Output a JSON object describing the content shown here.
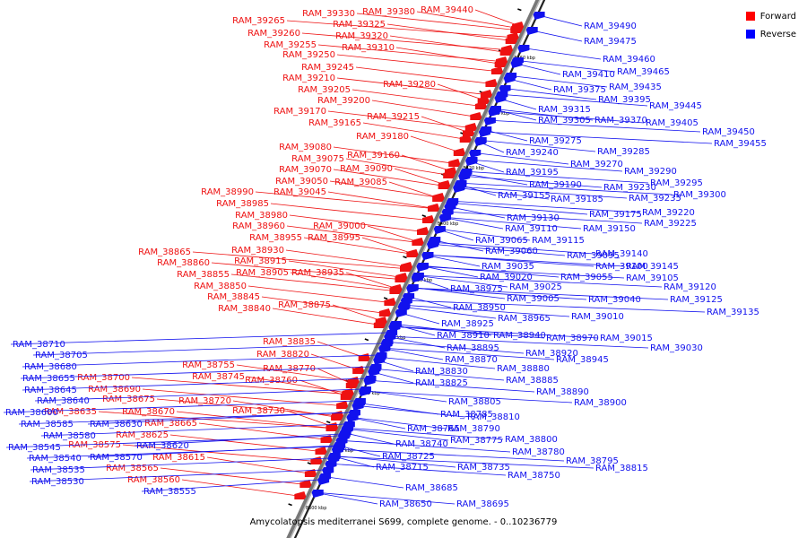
{
  "caption": "Amycolatopsis mediterranei S699, complete genome. - 0..10236779",
  "legend": [
    {
      "label": "Forward",
      "color": "#ff0000"
    },
    {
      "label": "Reverse",
      "color": "#0000ff"
    }
  ],
  "colors": {
    "forward": "#ee1111",
    "reverse": "#1111ee",
    "axis": "#777777"
  },
  "scale_ticks": [
    "8460 kbp",
    "8440 kbp",
    "8420 kbp",
    "8400 kbp",
    "8380 kbp",
    "8360 kbp",
    "8340 kbp",
    "8320 kbp",
    "8300 kbp"
  ],
  "forward_genes": [
    "RAM_39440",
    "RAM_39380",
    "RAM_39330",
    "RAM_39325",
    "RAM_39320",
    "RAM_39310",
    "RAM_39265",
    "RAM_39260",
    "RAM_39255",
    "RAM_39250",
    "RAM_39245",
    "RAM_39210",
    "RAM_39280",
    "RAM_39205",
    "RAM_39200",
    "RAM_39170",
    "RAM_39215",
    "RAM_39165",
    "RAM_39180",
    "RAM_39160",
    "RAM_39080",
    "RAM_39075",
    "RAM_39090",
    "RAM_39070",
    "RAM_39085",
    "RAM_39050",
    "RAM_39045",
    "RAM_38990",
    "RAM_38985",
    "RAM_38980",
    "RAM_38960",
    "RAM_39000",
    "RAM_38955",
    "RAM_38995",
    "RAM_38865",
    "RAM_38930",
    "RAM_38860",
    "RAM_38915",
    "RAM_38855",
    "RAM_38905",
    "RAM_38935",
    "RAM_38850",
    "RAM_38845",
    "RAM_38875",
    "RAM_38840",
    "RAM_38835",
    "RAM_38820",
    "RAM_38755",
    "RAM_38770",
    "RAM_38745",
    "RAM_38760",
    "RAM_38700",
    "RAM_38690",
    "RAM_38675",
    "RAM_38720",
    "RAM_38635",
    "RAM_38670",
    "RAM_38730",
    "RAM_38665",
    "RAM_38625",
    "RAM_38575",
    "RAM_38615",
    "RAM_38565",
    "RAM_38560"
  ],
  "reverse_genes": [
    "RAM_39490",
    "RAM_39475",
    "RAM_39460",
    "RAM_39410",
    "RAM_39465",
    "RAM_39375",
    "RAM_39435",
    "RAM_39395",
    "RAM_39445",
    "RAM_39315",
    "RAM_39405",
    "RAM_39305",
    "RAM_39370",
    "RAM_39450",
    "RAM_39455",
    "RAM_39275",
    "RAM_39240",
    "RAM_39285",
    "RAM_39270",
    "RAM_39290",
    "RAM_39195",
    "RAM_39295",
    "RAM_39190",
    "RAM_39230",
    "RAM_39300",
    "RAM_39155",
    "RAM_39185",
    "RAM_39235",
    "RAM_39175",
    "RAM_39220",
    "RAM_39130",
    "RAM_39225",
    "RAM_39110",
    "RAM_39150",
    "RAM_39065",
    "RAM_39115",
    "RAM_39140",
    "RAM_39060",
    "RAM_39095",
    "RAM_39035",
    "RAM_39100",
    "RAM_39145",
    "RAM_39020",
    "RAM_39055",
    "RAM_39105",
    "RAM_38975",
    "RAM_39025",
    "RAM_39120",
    "RAM_39005",
    "RAM_39040",
    "RAM_39125",
    "RAM_38950",
    "RAM_39135",
    "RAM_38965",
    "RAM_39010",
    "RAM_38925",
    "RAM_38910",
    "RAM_38940",
    "RAM_38970",
    "RAM_39015",
    "RAM_38895",
    "RAM_38920",
    "RAM_39030",
    "RAM_38870",
    "RAM_38945",
    "RAM_38830",
    "RAM_38880",
    "RAM_38825",
    "RAM_38885",
    "RAM_38890",
    "RAM_38805",
    "RAM_38900",
    "RAM_38785",
    "RAM_38810",
    "RAM_38765",
    "RAM_38790",
    "RAM_38775",
    "RAM_38800",
    "RAM_38740",
    "RAM_38780",
    "RAM_38725",
    "RAM_38795",
    "RAM_38715",
    "RAM_38735",
    "RAM_38750",
    "RAM_38815",
    "RAM_38685",
    "RAM_38650",
    "RAM_38695",
    "RAM_38710",
    "RAM_38705",
    "RAM_38680",
    "RAM_38655",
    "RAM_38645",
    "RAM_38640",
    "RAM_38600",
    "RAM_38585",
    "RAM_38630",
    "RAM_38580",
    "RAM_38545",
    "RAM_38620",
    "RAM_38540",
    "RAM_38570",
    "RAM_38535",
    "RAM_38530",
    "RAM_38555"
  ]
}
